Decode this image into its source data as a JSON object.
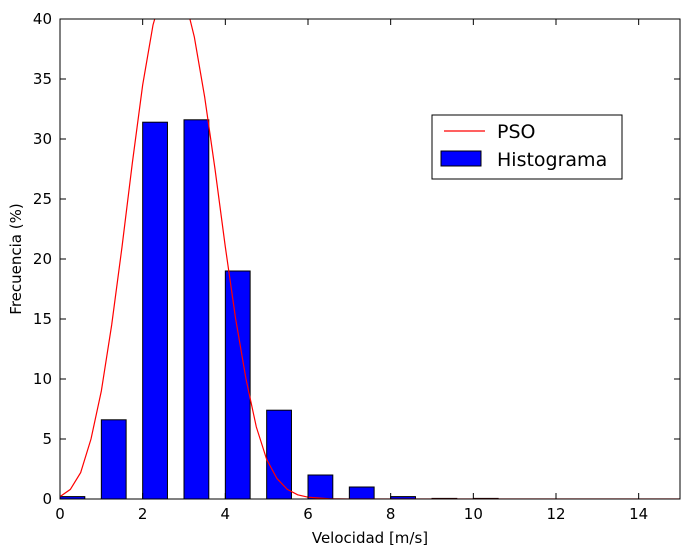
{
  "chart_data": {
    "type": "bar",
    "title": "",
    "xlabel": "Velocidad [m/s]",
    "ylabel": "Frecuencia (%)",
    "xlim": [
      0,
      15
    ],
    "ylim": [
      0,
      40
    ],
    "xticks": [
      0,
      2,
      4,
      6,
      8,
      10,
      12,
      14
    ],
    "yticks": [
      0,
      5,
      10,
      15,
      20,
      25,
      30,
      35,
      40
    ],
    "grid": false,
    "legend_position": "upper-right",
    "series": [
      {
        "name": "Histograma",
        "kind": "bar",
        "color": "#0000ff",
        "edge_color": "#000000",
        "bar_width": 0.6,
        "x": [
          0.3,
          1.3,
          2.3,
          3.3,
          4.3,
          5.3,
          6.3,
          7.3,
          8.3,
          9.3,
          10.3
        ],
        "values": [
          0.2,
          6.6,
          31.4,
          31.6,
          19.0,
          7.4,
          2.0,
          1.0,
          0.2,
          0.05,
          0.05
        ]
      },
      {
        "name": "PSO",
        "kind": "line",
        "color": "#ff0000",
        "x": [
          0,
          0.25,
          0.5,
          0.75,
          1,
          1.25,
          1.5,
          1.75,
          2,
          2.25,
          2.5,
          2.75,
          3,
          3.25,
          3.5,
          3.75,
          4,
          4.25,
          4.5,
          4.75,
          5,
          5.25,
          5.5,
          5.75,
          6,
          6.5,
          7,
          8,
          9,
          10,
          12,
          15
        ],
        "y": [
          0.2,
          0.8,
          2.2,
          5.0,
          9.0,
          14.5,
          21.0,
          28.0,
          34.5,
          39.5,
          42.5,
          43.5,
          42.0,
          38.5,
          33.5,
          27.5,
          21.0,
          15.0,
          10.0,
          6.0,
          3.3,
          1.7,
          0.8,
          0.35,
          0.15,
          0.02,
          0.0,
          0.0,
          0.0,
          0.0,
          0.0,
          0.0
        ]
      }
    ]
  }
}
